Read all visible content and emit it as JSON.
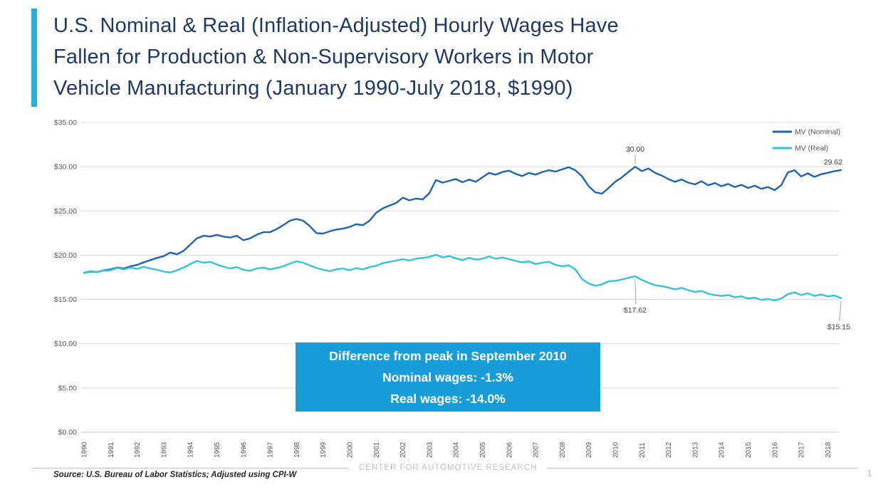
{
  "slide": {
    "title": "U.S. Nominal & Real (Inflation-Adjusted) Hourly Wages Have Fallen for Production & Non-Supervisory Workers in Motor Vehicle Manufacturing (January 1990-July 2018, $1990)",
    "title_lines": [
      "U.S. Nominal & Real (Inflation-Adjusted) Hourly Wages Have",
      "Fallen for Production & Non-Supervisory Workers in Motor",
      "Vehicle Manufacturing (January 1990-July 2018, $1990)"
    ],
    "accent_color": "#29ABE2",
    "title_color": "#1F3864"
  },
  "chart_data": {
    "type": "line",
    "title": "",
    "xlabel": "",
    "ylabel": "",
    "x_start": 1990,
    "x_step": 0.25,
    "x_end": 2018.5,
    "ylim": [
      0,
      35
    ],
    "y_tick_step": 5,
    "grid": true,
    "legend_position": "top-right",
    "y_tick_labels": [
      "$0.00",
      "$5.00",
      "$10.00",
      "$15.00",
      "$20.00",
      "$25.00",
      "$30.00",
      "$35.00"
    ],
    "x_tick_labels": [
      "1990",
      "1991",
      "1992",
      "1993",
      "1994",
      "1995",
      "1996",
      "1997",
      "1998",
      "1999",
      "2000",
      "2001",
      "2002",
      "2003",
      "2004",
      "2005",
      "2006",
      "2007",
      "2008",
      "2009",
      "2010",
      "2011",
      "2012",
      "2013",
      "2014",
      "2015",
      "2016",
      "2017",
      "2018"
    ],
    "series": [
      {
        "name": "MV (Nominal)",
        "color": "#2063AE",
        "values": [
          18.0,
          18.15,
          18.1,
          18.3,
          18.4,
          18.6,
          18.5,
          18.75,
          18.9,
          19.2,
          19.45,
          19.7,
          19.9,
          20.3,
          20.1,
          20.5,
          21.2,
          21.9,
          22.2,
          22.1,
          22.3,
          22.1,
          22.0,
          22.2,
          21.7,
          21.9,
          22.3,
          22.6,
          22.6,
          22.95,
          23.4,
          23.9,
          24.1,
          23.9,
          23.3,
          22.5,
          22.45,
          22.7,
          22.9,
          23.0,
          23.2,
          23.5,
          23.4,
          23.9,
          24.8,
          25.3,
          25.6,
          25.9,
          26.5,
          26.2,
          26.4,
          26.3,
          27.0,
          28.5,
          28.2,
          28.4,
          28.6,
          28.25,
          28.55,
          28.3,
          28.8,
          29.3,
          29.1,
          29.4,
          29.55,
          29.2,
          28.95,
          29.3,
          29.1,
          29.4,
          29.6,
          29.45,
          29.7,
          29.95,
          29.6,
          28.9,
          27.8,
          27.1,
          26.95,
          27.6,
          28.3,
          28.8,
          29.4,
          30.0,
          29.5,
          29.8,
          29.3,
          29.0,
          28.6,
          28.3,
          28.55,
          28.2,
          28.0,
          28.35,
          27.9,
          28.15,
          27.8,
          28.05,
          27.7,
          27.95,
          27.6,
          27.85,
          27.5,
          27.7,
          27.35,
          27.9,
          29.35,
          29.6,
          28.9,
          29.25,
          28.85,
          29.15,
          29.3,
          29.5,
          29.62
        ]
      },
      {
        "name": "MV (Real)",
        "color": "#35C2D5",
        "values": [
          18.0,
          18.2,
          18.1,
          18.25,
          18.3,
          18.55,
          18.4,
          18.6,
          18.45,
          18.7,
          18.5,
          18.35,
          18.15,
          18.05,
          18.3,
          18.6,
          19.0,
          19.35,
          19.15,
          19.25,
          18.95,
          18.7,
          18.5,
          18.65,
          18.35,
          18.25,
          18.5,
          18.6,
          18.4,
          18.55,
          18.75,
          19.05,
          19.3,
          19.15,
          18.85,
          18.55,
          18.35,
          18.2,
          18.4,
          18.5,
          18.3,
          18.55,
          18.4,
          18.65,
          18.8,
          19.1,
          19.25,
          19.4,
          19.55,
          19.4,
          19.6,
          19.7,
          19.8,
          20.05,
          19.75,
          19.9,
          19.65,
          19.45,
          19.7,
          19.5,
          19.6,
          19.85,
          19.6,
          19.75,
          19.55,
          19.35,
          19.2,
          19.3,
          19.0,
          19.15,
          19.25,
          18.9,
          18.75,
          18.85,
          18.4,
          17.3,
          16.8,
          16.55,
          16.7,
          17.05,
          17.1,
          17.25,
          17.45,
          17.62,
          17.2,
          16.9,
          16.6,
          16.5,
          16.35,
          16.15,
          16.3,
          16.05,
          15.85,
          15.95,
          15.65,
          15.5,
          15.4,
          15.5,
          15.25,
          15.35,
          15.1,
          15.2,
          14.95,
          15.05,
          14.9,
          15.1,
          15.6,
          15.8,
          15.5,
          15.7,
          15.4,
          15.55,
          15.35,
          15.45,
          15.15
        ]
      }
    ],
    "annotations": [
      {
        "text": "30.00",
        "x": 2010.75,
        "value": 30.0,
        "label_offset": [
          0,
          -21
        ],
        "callout": true,
        "anchor": "middle"
      },
      {
        "text": "29.62",
        "x": 2018.5,
        "value": 29.62,
        "label_offset": [
          2,
          -8
        ],
        "callout": false,
        "anchor": "end"
      },
      {
        "text": "$17.62",
        "x": 2010.75,
        "value": 17.62,
        "label_offset": [
          0,
          51
        ],
        "callout": true,
        "anchor": "middle"
      },
      {
        "text": "$15.15",
        "x": 2018.5,
        "value": 15.15,
        "label_offset": [
          -3,
          44
        ],
        "callout": true,
        "anchor": "middle"
      }
    ],
    "grid_color": "#D9D9D9",
    "axis_text_color": "#595959",
    "annotation_text_color": "#3F3F3F"
  },
  "callout": {
    "line1": "Difference from peak in September 2010",
    "line2": "Nominal wages: -1.3%",
    "line3": "Real wages: -14.0%",
    "bg_color": "#199DD9"
  },
  "footer": {
    "source": "Source: U.S. Bureau of Labor Statistics; Adjusted using CPI-W",
    "center_text": "CENTER FOR AUTOMOTIVE RESEARCH",
    "page_number": "1"
  }
}
